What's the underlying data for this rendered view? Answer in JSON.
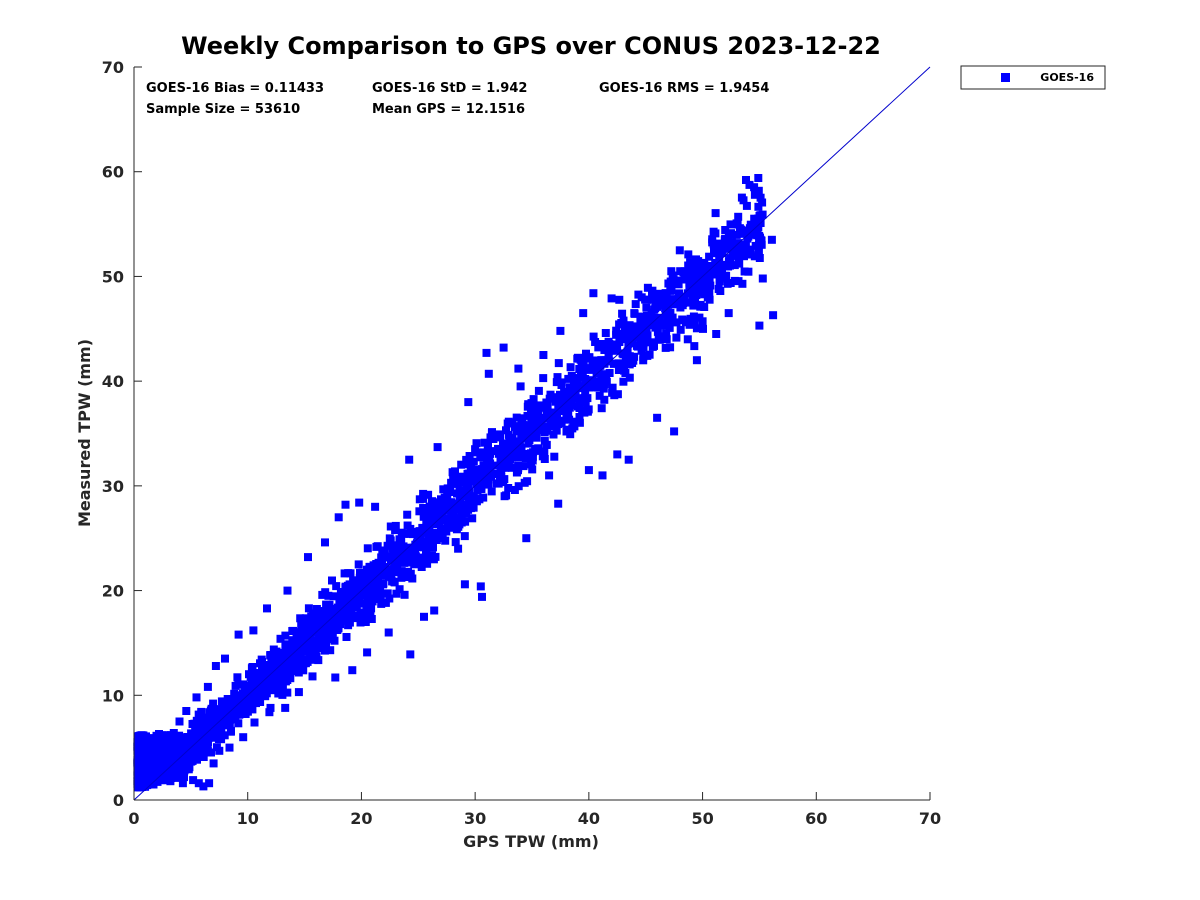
{
  "chart_data": {
    "type": "scatter",
    "title": "Weekly Comparison to GPS over CONUS 2023-12-22",
    "xlabel": "GPS TPW (mm)",
    "ylabel": "Measured TPW (mm)",
    "xlim": [
      0,
      70
    ],
    "ylim": [
      0,
      70
    ],
    "xticks": [
      "0",
      "10",
      "20",
      "30",
      "40",
      "50",
      "60",
      "70"
    ],
    "yticks": [
      "0",
      "10",
      "20",
      "30",
      "40",
      "50",
      "60",
      "70"
    ],
    "grid": false,
    "legend": {
      "position": "outside-top-right",
      "entries": [
        "GOES-16"
      ]
    },
    "series_color": "#0000ff",
    "stats": [
      "GOES-16 Bias = 0.11433",
      "GOES-16 StD = 1.942",
      "GOES-16 RMS = 1.9454",
      "Sample Size = 53610",
      "Mean GPS = 12.1516"
    ],
    "reference_line": {
      "from": [
        0,
        0
      ],
      "to": [
        70,
        70
      ]
    },
    "series": [
      {
        "name": "GOES-16",
        "points": [
          [
            0.3,
            3.8
          ],
          [
            0.6,
            3.2
          ],
          [
            1.0,
            2.6
          ],
          [
            1.2,
            4.8
          ],
          [
            1.5,
            5.7
          ],
          [
            1.8,
            2.0
          ],
          [
            2.0,
            3.4
          ],
          [
            2.2,
            6.3
          ],
          [
            2.6,
            2.3
          ],
          [
            2.9,
            4.6
          ],
          [
            3.2,
            1.8
          ],
          [
            3.5,
            6.4
          ],
          [
            3.8,
            2.5
          ],
          [
            4.0,
            7.5
          ],
          [
            4.3,
            1.6
          ],
          [
            4.6,
            8.5
          ],
          [
            4.8,
            3.1
          ],
          [
            5.2,
            1.9
          ],
          [
            5.5,
            9.8
          ],
          [
            5.7,
            1.6
          ],
          [
            6.1,
            1.3
          ],
          [
            6.3,
            7.1
          ],
          [
            6.5,
            10.8
          ],
          [
            6.6,
            1.6
          ],
          [
            7.0,
            3.5
          ],
          [
            7.2,
            12.8
          ],
          [
            7.5,
            4.7
          ],
          [
            8.0,
            13.5
          ],
          [
            8.4,
            5.0
          ],
          [
            9.2,
            15.8
          ],
          [
            9.6,
            6.0
          ],
          [
            10.5,
            16.2
          ],
          [
            10.6,
            7.4
          ],
          [
            11.7,
            18.3
          ],
          [
            12.0,
            8.8
          ],
          [
            13.3,
            8.8
          ],
          [
            13.5,
            20.0
          ],
          [
            14.5,
            10.3
          ],
          [
            15.3,
            23.2
          ],
          [
            15.7,
            11.8
          ],
          [
            16.8,
            24.6
          ],
          [
            17.7,
            11.7
          ],
          [
            18.0,
            27.0
          ],
          [
            18.6,
            28.2
          ],
          [
            19.2,
            12.4
          ],
          [
            19.8,
            28.4
          ],
          [
            20.5,
            14.1
          ],
          [
            21.2,
            28.0
          ],
          [
            22.4,
            16.0
          ],
          [
            23.8,
            19.6
          ],
          [
            24.2,
            32.5
          ],
          [
            24.3,
            13.9
          ],
          [
            25.5,
            17.5
          ],
          [
            26.4,
            18.1
          ],
          [
            26.7,
            33.7
          ],
          [
            28.5,
            24.0
          ],
          [
            29.1,
            20.6
          ],
          [
            29.4,
            38.0
          ],
          [
            30.0,
            33.5
          ],
          [
            30.5,
            20.4
          ],
          [
            30.6,
            19.4
          ],
          [
            31.0,
            42.7
          ],
          [
            31.2,
            40.7
          ],
          [
            32.5,
            43.2
          ],
          [
            33.5,
            29.6
          ],
          [
            33.8,
            41.2
          ],
          [
            34.0,
            39.5
          ],
          [
            34.5,
            25.0
          ],
          [
            36.0,
            42.5
          ],
          [
            36.5,
            31.0
          ],
          [
            37.3,
            28.3
          ],
          [
            37.5,
            44.8
          ],
          [
            38.5,
            40.5
          ],
          [
            39.5,
            46.5
          ],
          [
            40.0,
            31.5
          ],
          [
            40.4,
            48.4
          ],
          [
            41.2,
            31.0
          ],
          [
            42.0,
            47.9
          ],
          [
            42.5,
            33.0
          ],
          [
            43.5,
            32.5
          ],
          [
            44.0,
            46.5
          ],
          [
            45.0,
            44.0
          ],
          [
            46.0,
            36.5
          ],
          [
            47.5,
            35.2
          ],
          [
            48.0,
            52.5
          ],
          [
            48.7,
            44.0
          ],
          [
            49.5,
            42.0
          ],
          [
            50.8,
            51.0
          ],
          [
            51.2,
            44.5
          ],
          [
            52.3,
            46.5
          ],
          [
            52.8,
            52.0
          ],
          [
            53.5,
            49.3
          ],
          [
            54.6,
            57.8
          ],
          [
            54.9,
            59.4
          ],
          [
            55.0,
            45.3
          ],
          [
            56.1,
            53.5
          ],
          [
            56.2,
            46.3
          ],
          [
            55.3,
            49.8
          ]
        ]
      }
    ]
  }
}
